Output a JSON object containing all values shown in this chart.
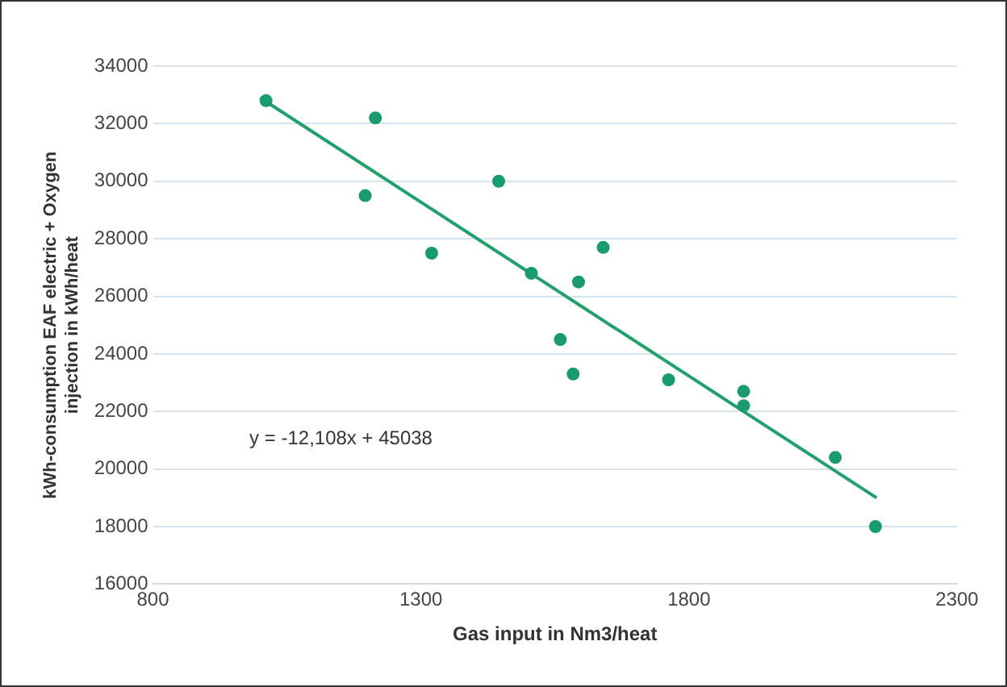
{
  "chart_data": {
    "type": "scatter",
    "xlabel": "Gas input in Nm3/heat",
    "ylabel": "kWh-consumption EAF electric + Oxygen injection in kWh/heat",
    "xlim": [
      800,
      2300
    ],
    "xticks": [
      800,
      1300,
      1800,
      2300
    ],
    "ylim": [
      16000,
      34000
    ],
    "yticks": [
      16000,
      18000,
      20000,
      22000,
      24000,
      26000,
      28000,
      30000,
      32000,
      34000
    ],
    "grid": "y",
    "legend": false,
    "series": [
      {
        "type": "scatter",
        "marker": "circle",
        "color": "#199b6e",
        "x": [
          1011,
          1215,
          1196,
          1320,
          1445,
          1506,
          1594,
          1640,
          1560,
          1584,
          1762,
          1902,
          1902,
          2073,
          2148
        ],
        "values": [
          32800,
          32200,
          29500,
          27500,
          30000,
          26800,
          26500,
          27700,
          24500,
          23300,
          23100,
          22700,
          22200,
          20400,
          18000
        ]
      },
      {
        "type": "line",
        "marker": "none",
        "color": "#22a06b",
        "x": [
          1000,
          2150
        ],
        "values": [
          32900,
          19000
        ]
      }
    ],
    "annotations": [
      "y = -12,108x + 45038"
    ]
  }
}
